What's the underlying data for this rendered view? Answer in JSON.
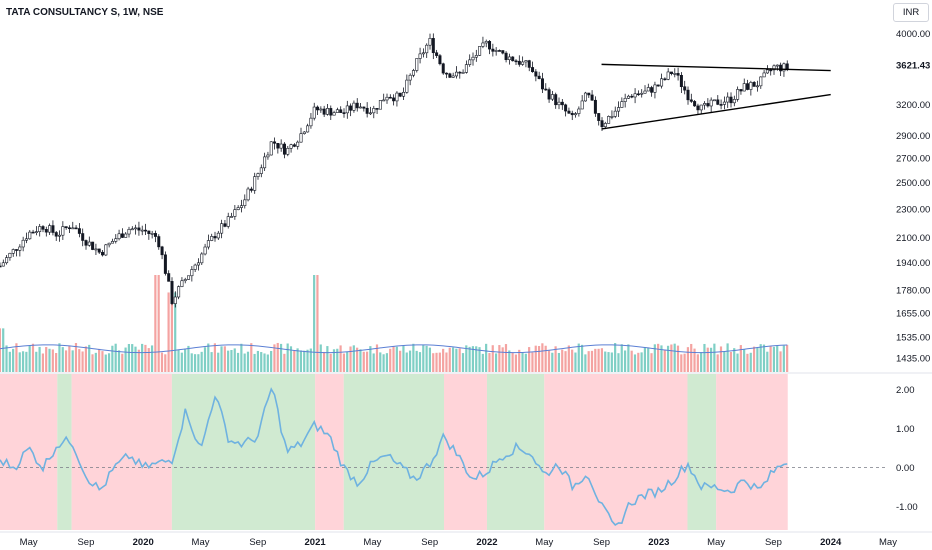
{
  "header": {
    "title": "TATA CONSULTANCY S, 1W, NSE",
    "currency": "INR"
  },
  "colors": {
    "bull_candle": "#26a69a",
    "bear_candle": "#ef5350",
    "volume_bull": "#7fcfc5",
    "volume_bear": "#f4a3a1",
    "volume_ma": "#5b7fd4",
    "oscillator_line": "#6fb2e0",
    "bg_positive": "#c8e6c9",
    "bg_negative": "#ffcdd2",
    "trendline": "#000000"
  },
  "chart_data": {
    "type": "line",
    "price_panel": {
      "series": "candlestick",
      "scale": "log",
      "ylim": [
        1400,
        4150
      ],
      "price_ticks": [
        "4000.00",
        "3621.43",
        "3200.00",
        "2900.00",
        "2700.00",
        "2500.00",
        "2300.00",
        "2100.00",
        "1940.00",
        "1780.00",
        "1655.00",
        "1535.00",
        "1435.00"
      ],
      "highlighted_price": "3621.43",
      "path_points": [
        {
          "x": "2019-03",
          "y": 1920
        },
        {
          "x": "2019-04",
          "y": 2020
        },
        {
          "x": "2019-05",
          "y": 2130
        },
        {
          "x": "2019-06",
          "y": 2180
        },
        {
          "x": "2019-07",
          "y": 2120
        },
        {
          "x": "2019-08",
          "y": 2190
        },
        {
          "x": "2019-09",
          "y": 2080
        },
        {
          "x": "2019-10",
          "y": 2000
        },
        {
          "x": "2019-11",
          "y": 2090
        },
        {
          "x": "2019-12",
          "y": 2160
        },
        {
          "x": "2020-01",
          "y": 2150
        },
        {
          "x": "2020-02",
          "y": 2100
        },
        {
          "x": "2020-03",
          "y": 1720
        },
        {
          "x": "2020-04",
          "y": 1850
        },
        {
          "x": "2020-05",
          "y": 1980
        },
        {
          "x": "2020-06",
          "y": 2120
        },
        {
          "x": "2020-07",
          "y": 2220
        },
        {
          "x": "2020-08",
          "y": 2350
        },
        {
          "x": "2020-09",
          "y": 2570
        },
        {
          "x": "2020-10",
          "y": 2850
        },
        {
          "x": "2020-11",
          "y": 2760
        },
        {
          "x": "2020-12",
          "y": 2910
        },
        {
          "x": "2021-01",
          "y": 3150
        },
        {
          "x": "2021-02",
          "y": 3130
        },
        {
          "x": "2021-03",
          "y": 3120
        },
        {
          "x": "2021-04",
          "y": 3200
        },
        {
          "x": "2021-05",
          "y": 3130
        },
        {
          "x": "2021-06",
          "y": 3300
        },
        {
          "x": "2021-07",
          "y": 3260
        },
        {
          "x": "2021-08",
          "y": 3620
        },
        {
          "x": "2021-09",
          "y": 3910
        },
        {
          "x": "2021-10",
          "y": 3550
        },
        {
          "x": "2021-11",
          "y": 3500
        },
        {
          "x": "2021-12",
          "y": 3700
        },
        {
          "x": "2022-01",
          "y": 3880
        },
        {
          "x": "2022-02",
          "y": 3750
        },
        {
          "x": "2022-03",
          "y": 3680
        },
        {
          "x": "2022-04",
          "y": 3600
        },
        {
          "x": "2022-05",
          "y": 3350
        },
        {
          "x": "2022-06",
          "y": 3200
        },
        {
          "x": "2022-07",
          "y": 3050
        },
        {
          "x": "2022-08",
          "y": 3300
        },
        {
          "x": "2022-09",
          "y": 3000
        },
        {
          "x": "2022-10",
          "y": 3140
        },
        {
          "x": "2022-11",
          "y": 3300
        },
        {
          "x": "2022-12",
          "y": 3320
        },
        {
          "x": "2023-01",
          "y": 3400
        },
        {
          "x": "2023-02",
          "y": 3560
        },
        {
          "x": "2023-03",
          "y": 3300
        },
        {
          "x": "2023-04",
          "y": 3150
        },
        {
          "x": "2023-05",
          "y": 3220
        },
        {
          "x": "2023-06",
          "y": 3250
        },
        {
          "x": "2023-07",
          "y": 3380
        },
        {
          "x": "2023-08",
          "y": 3420
        },
        {
          "x": "2023-09",
          "y": 3600
        },
        {
          "x": "2023-10",
          "y": 3590
        }
      ],
      "trendlines": [
        {
          "name": "resistance",
          "from": {
            "x": "2022-09",
            "y": 3630
          },
          "to": {
            "x": "2024-01",
            "y": 3560
          }
        },
        {
          "name": "support",
          "from": {
            "x": "2022-09",
            "y": 2960
          },
          "to": {
            "x": "2024-01",
            "y": 3300
          }
        }
      ]
    },
    "volume_panel": {
      "baseline_level": "1435.00",
      "notable_spikes": [
        {
          "x": "2019-03",
          "relative": 0.45
        },
        {
          "x": "2020-02",
          "relative": 1.0
        },
        {
          "x": "2020-03",
          "relative": 0.82
        },
        {
          "x": "2021-01",
          "relative": 1.0
        }
      ]
    },
    "oscillator_panel": {
      "ylim": [
        -1.6,
        2.4
      ],
      "y_ticks": [
        "2.00",
        "1.00",
        "0.00",
        "-1.00"
      ],
      "zero_line": "dashed",
      "points": [
        {
          "x": "2019-03",
          "y": 0.2
        },
        {
          "x": "2019-04",
          "y": 0.0
        },
        {
          "x": "2019-05",
          "y": 0.5
        },
        {
          "x": "2019-06",
          "y": 0.0
        },
        {
          "x": "2019-07",
          "y": 0.6
        },
        {
          "x": "2019-08",
          "y": 0.7
        },
        {
          "x": "2019-09",
          "y": -0.2
        },
        {
          "x": "2019-10",
          "y": -0.6
        },
        {
          "x": "2019-11",
          "y": 0.0
        },
        {
          "x": "2019-12",
          "y": 0.3
        },
        {
          "x": "2020-01",
          "y": 0.0
        },
        {
          "x": "2020-02",
          "y": 0.1
        },
        {
          "x": "2020-03",
          "y": 0.2
        },
        {
          "x": "2020-04",
          "y": 1.5
        },
        {
          "x": "2020-05",
          "y": 0.4
        },
        {
          "x": "2020-06",
          "y": 1.9
        },
        {
          "x": "2020-07",
          "y": 0.7
        },
        {
          "x": "2020-08",
          "y": 0.6
        },
        {
          "x": "2020-09",
          "y": 0.8
        },
        {
          "x": "2020-10",
          "y": 2.1
        },
        {
          "x": "2020-11",
          "y": 0.4
        },
        {
          "x": "2020-12",
          "y": 0.6
        },
        {
          "x": "2021-01",
          "y": 1.1
        },
        {
          "x": "2021-02",
          "y": 0.8
        },
        {
          "x": "2021-03",
          "y": 0.0
        },
        {
          "x": "2021-04",
          "y": -0.4
        },
        {
          "x": "2021-05",
          "y": 0.1
        },
        {
          "x": "2021-06",
          "y": 0.3
        },
        {
          "x": "2021-07",
          "y": 0.0
        },
        {
          "x": "2021-08",
          "y": -0.3
        },
        {
          "x": "2021-09",
          "y": 0.1
        },
        {
          "x": "2021-10",
          "y": 0.8
        },
        {
          "x": "2021-11",
          "y": 0.3
        },
        {
          "x": "2021-12",
          "y": -0.3
        },
        {
          "x": "2022-01",
          "y": -0.1
        },
        {
          "x": "2022-02",
          "y": 0.3
        },
        {
          "x": "2022-03",
          "y": 0.5
        },
        {
          "x": "2022-04",
          "y": 0.4
        },
        {
          "x": "2022-05",
          "y": -0.2
        },
        {
          "x": "2022-06",
          "y": 0.1
        },
        {
          "x": "2022-07",
          "y": -0.5
        },
        {
          "x": "2022-08",
          "y": -0.1
        },
        {
          "x": "2022-09",
          "y": -1.0
        },
        {
          "x": "2022-10",
          "y": -1.6
        },
        {
          "x": "2022-11",
          "y": -0.9
        },
        {
          "x": "2022-12",
          "y": -0.7
        },
        {
          "x": "2023-01",
          "y": -0.6
        },
        {
          "x": "2023-02",
          "y": -0.3
        },
        {
          "x": "2023-03",
          "y": 0.1
        },
        {
          "x": "2023-04",
          "y": -0.5
        },
        {
          "x": "2023-05",
          "y": -0.5
        },
        {
          "x": "2023-06",
          "y": -0.6
        },
        {
          "x": "2023-07",
          "y": -0.3
        },
        {
          "x": "2023-08",
          "y": -0.6
        },
        {
          "x": "2023-09",
          "y": -0.1
        },
        {
          "x": "2023-10",
          "y": 0.2
        }
      ],
      "background_regimes": [
        {
          "from": "2019-03",
          "to": "2019-07",
          "state": "negative"
        },
        {
          "from": "2019-07",
          "to": "2019-08",
          "state": "positive"
        },
        {
          "from": "2019-08",
          "to": "2020-03",
          "state": "negative"
        },
        {
          "from": "2020-03",
          "to": "2021-01",
          "state": "positive"
        },
        {
          "from": "2021-01",
          "to": "2021-03",
          "state": "negative"
        },
        {
          "from": "2021-03",
          "to": "2021-10",
          "state": "positive"
        },
        {
          "from": "2021-10",
          "to": "2022-01",
          "state": "negative"
        },
        {
          "from": "2022-01",
          "to": "2022-05",
          "state": "positive"
        },
        {
          "from": "2022-05",
          "to": "2023-03",
          "state": "negative"
        },
        {
          "from": "2023-03",
          "to": "2023-05",
          "state": "positive"
        },
        {
          "from": "2023-05",
          "to": "2023-10",
          "state": "negative"
        }
      ]
    },
    "x_axis": {
      "start": "2019-03",
      "end": "2024-05",
      "ticks": [
        {
          "label": "May",
          "x": "2019-05",
          "year": false
        },
        {
          "label": "Sep",
          "x": "2019-09",
          "year": false
        },
        {
          "label": "2020",
          "x": "2020-01",
          "year": true
        },
        {
          "label": "May",
          "x": "2020-05",
          "year": false
        },
        {
          "label": "Sep",
          "x": "2020-09",
          "year": false
        },
        {
          "label": "2021",
          "x": "2021-01",
          "year": true
        },
        {
          "label": "May",
          "x": "2021-05",
          "year": false
        },
        {
          "label": "Sep",
          "x": "2021-09",
          "year": false
        },
        {
          "label": "2022",
          "x": "2022-01",
          "year": true
        },
        {
          "label": "May",
          "x": "2022-05",
          "year": false
        },
        {
          "label": "Sep",
          "x": "2022-09",
          "year": false
        },
        {
          "label": "2023",
          "x": "2023-01",
          "year": true
        },
        {
          "label": "May",
          "x": "2023-05",
          "year": false
        },
        {
          "label": "Sep",
          "x": "2023-09",
          "year": false
        },
        {
          "label": "2024",
          "x": "2024-01",
          "year": true
        },
        {
          "label": "May",
          "x": "2024-05",
          "year": false
        }
      ]
    }
  }
}
